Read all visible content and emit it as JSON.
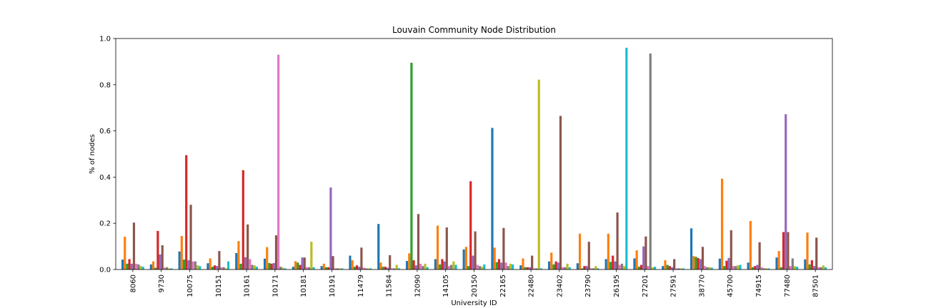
{
  "chart_data": {
    "type": "bar",
    "title": "Louvain Community Node Distribution",
    "xlabel": "University ID",
    "ylabel": "% of nodes",
    "ylim": [
      0,
      1.0
    ],
    "yticks": [
      0.0,
      0.2,
      0.4,
      0.6,
      0.8,
      1.0
    ],
    "ytick_labels": [
      "0.0",
      "0.2",
      "0.4",
      "0.6",
      "0.8",
      "1.0"
    ],
    "grid": false,
    "legend": "none",
    "colors": [
      "#1f77b4",
      "#ff7f0e",
      "#2ca02c",
      "#d62728",
      "#9467bd",
      "#8c564b",
      "#e377c2",
      "#7f7f7f",
      "#bcbd22",
      "#17becf"
    ],
    "categories": [
      "8060",
      "9730",
      "10075",
      "10151",
      "10161",
      "10171",
      "10181",
      "10191",
      "11479",
      "11584",
      "12090",
      "14105",
      "20150",
      "22165",
      "22480",
      "23402",
      "23790",
      "26195",
      "27201",
      "27591",
      "38770",
      "45700",
      "74915",
      "77480",
      "87501"
    ],
    "series": [
      {
        "values": [
          0.043,
          0.022,
          0.078,
          0.027,
          0.071,
          0.047,
          0.012,
          0.015,
          0.06,
          0.197,
          0.037,
          0.045,
          0.087,
          0.613,
          0.018,
          0.035,
          0.027,
          0.045,
          0.048,
          0.015,
          0.178,
          0.047,
          0.03,
          0.052,
          0.044
        ]
      },
      {
        "values": [
          0.142,
          0.035,
          0.145,
          0.048,
          0.123,
          0.097,
          0.036,
          0.025,
          0.04,
          0.03,
          0.07,
          0.19,
          0.098,
          0.095,
          0.048,
          0.073,
          0.155,
          0.155,
          0.083,
          0.04,
          0.058,
          0.393,
          0.21,
          0.08,
          0.16
        ]
      },
      {
        "values": [
          0.025,
          0.008,
          0.043,
          0.012,
          0.025,
          0.028,
          0.03,
          0.01,
          0.012,
          0.012,
          0.895,
          0.022,
          0.015,
          0.032,
          0.01,
          0.022,
          0.005,
          0.033,
          0.012,
          0.02,
          0.055,
          0.015,
          0.01,
          0.01,
          0.022
        ]
      },
      {
        "values": [
          0.045,
          0.167,
          0.495,
          0.018,
          0.43,
          0.025,
          0.02,
          0.01,
          0.018,
          0.012,
          0.04,
          0.045,
          0.382,
          0.045,
          0.01,
          0.035,
          0.015,
          0.06,
          0.02,
          0.015,
          0.05,
          0.038,
          0.015,
          0.162,
          0.04
        ]
      },
      {
        "values": [
          0.025,
          0.065,
          0.04,
          0.015,
          0.053,
          0.028,
          0.052,
          0.355,
          0.012,
          0.008,
          0.018,
          0.035,
          0.06,
          0.03,
          0.01,
          0.03,
          0.015,
          0.035,
          0.1,
          0.01,
          0.045,
          0.05,
          0.02,
          0.672,
          0.015
        ]
      },
      {
        "values": [
          0.203,
          0.105,
          0.28,
          0.08,
          0.195,
          0.148,
          0.052,
          0.058,
          0.095,
          0.062,
          0.24,
          0.182,
          0.165,
          0.18,
          0.06,
          0.665,
          0.12,
          0.247,
          0.143,
          0.045,
          0.098,
          0.17,
          0.118,
          0.162,
          0.138
        ]
      },
      {
        "values": [
          0.025,
          0.008,
          0.035,
          0.01,
          0.045,
          0.93,
          0.01,
          0.005,
          0.008,
          0.005,
          0.025,
          0.015,
          0.02,
          0.03,
          0.005,
          0.01,
          0.005,
          0.02,
          0.015,
          0.005,
          0.015,
          0.015,
          0.01,
          0.015,
          0.01
        ]
      },
      {
        "values": [
          0.022,
          0.01,
          0.035,
          0.01,
          0.02,
          0.012,
          0.01,
          0.005,
          0.005,
          0.005,
          0.015,
          0.02,
          0.015,
          0.015,
          0.005,
          0.01,
          0.005,
          0.025,
          0.935,
          0.005,
          0.01,
          0.015,
          0.005,
          0.048,
          0.01
        ]
      },
      {
        "values": [
          0.015,
          0.005,
          0.018,
          0.005,
          0.018,
          0.008,
          0.12,
          0.005,
          0.005,
          0.02,
          0.025,
          0.035,
          0.012,
          0.025,
          0.822,
          0.025,
          0.015,
          0.015,
          0.01,
          0.005,
          0.01,
          0.018,
          0.005,
          0.015,
          0.018
        ]
      },
      {
        "values": [
          0.012,
          0.005,
          0.015,
          0.035,
          0.012,
          0.005,
          0.01,
          0.005,
          0.005,
          0.005,
          0.01,
          0.02,
          0.022,
          0.022,
          0.005,
          0.01,
          0.005,
          0.96,
          0.012,
          0.005,
          0.008,
          0.02,
          0.005,
          0.012,
          0.01
        ]
      }
    ]
  }
}
